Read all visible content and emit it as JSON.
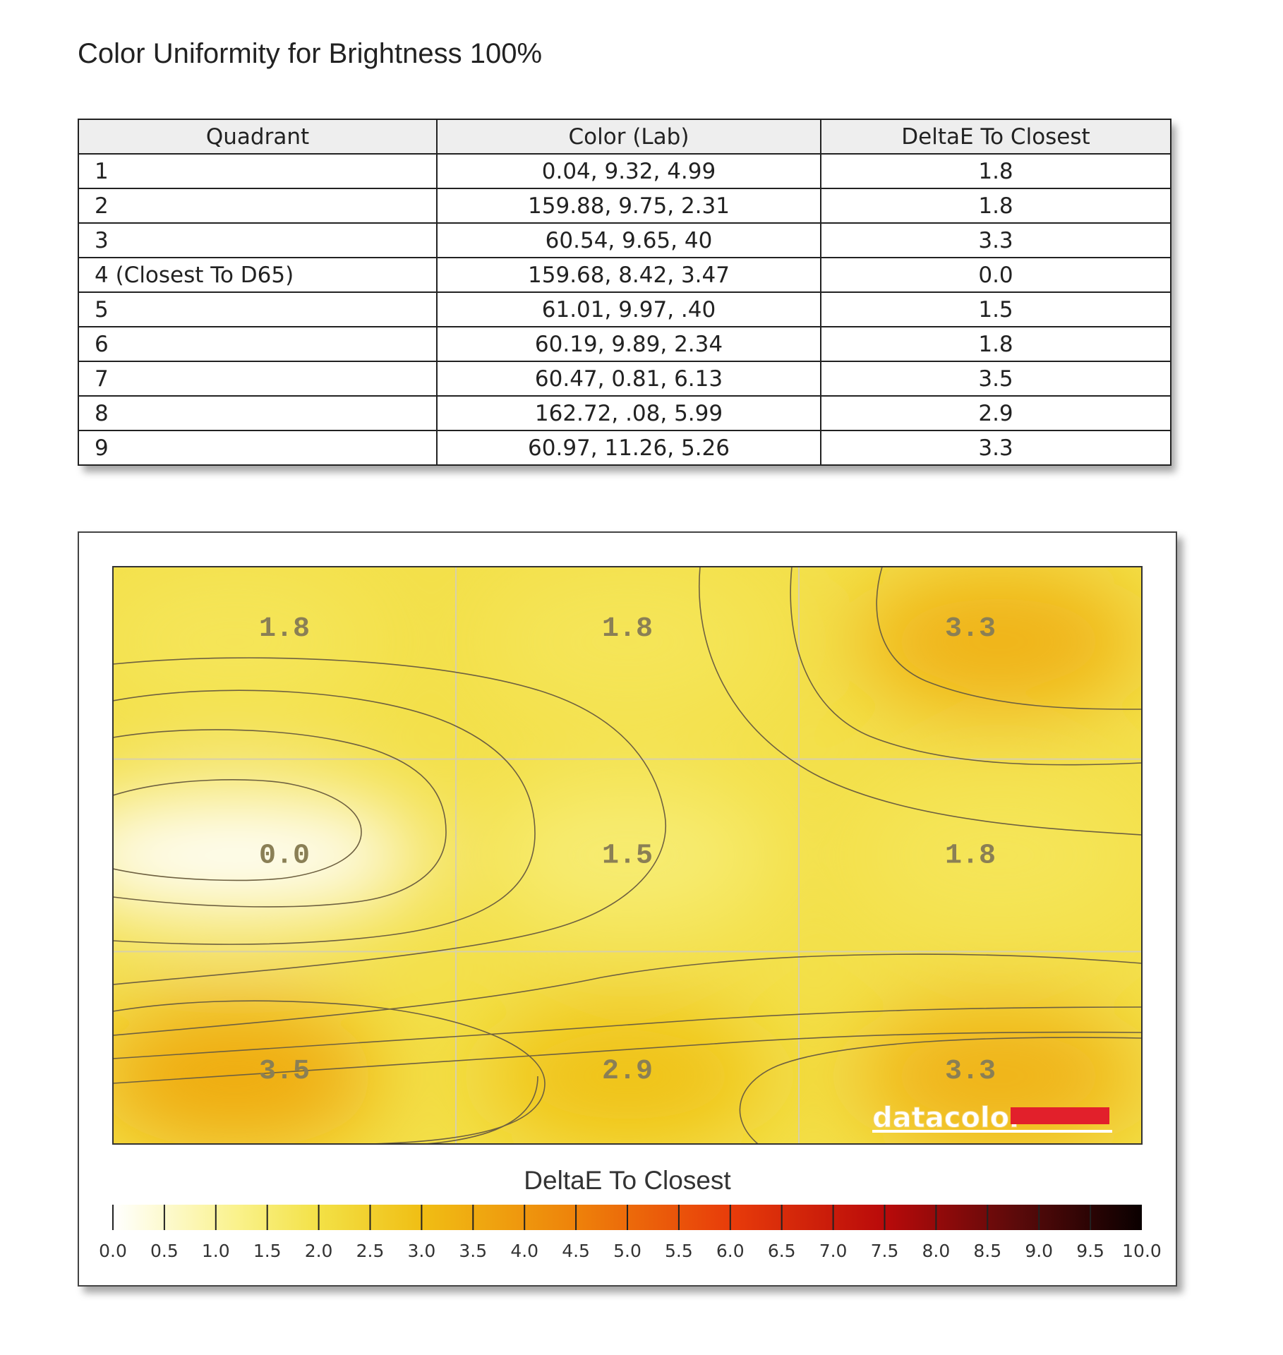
{
  "title": "Color Uniformity for Brightness 100%",
  "table": {
    "headers": [
      "Quadrant",
      "Color (Lab)",
      "DeltaE To Closest"
    ],
    "rows": [
      {
        "quadrant": "1",
        "lab": "0.04,   9.32,   4.99",
        "delta": "1.8"
      },
      {
        "quadrant": "2",
        "lab": "159.88,   9.75,   2.31",
        "delta": "1.8"
      },
      {
        "quadrant": "3",
        "lab": "60.54,   9.65,      40",
        "delta": "3.3"
      },
      {
        "quadrant": "4 (Closest To D65)",
        "lab": "159.68,   8.42,   3.47",
        "delta": "0.0"
      },
      {
        "quadrant": "5",
        "lab": "61.01,   9.97,     .40",
        "delta": "1.5"
      },
      {
        "quadrant": "6",
        "lab": "60.19,   9.89,   2.34",
        "delta": "1.8"
      },
      {
        "quadrant": "7",
        "lab": "60.47,   0.81,   6.13",
        "delta": "3.5"
      },
      {
        "quadrant": "8",
        "lab": "162.72,     .08,   5.99",
        "delta": "2.9"
      },
      {
        "quadrant": "9",
        "lab": "60.97,  11.26,   5.26",
        "delta": "3.3"
      }
    ]
  },
  "chart_data": {
    "type": "heatmap",
    "title": "DeltaE To Closest",
    "grid_rows": 3,
    "grid_cols": 3,
    "cells": [
      {
        "row": 0,
        "col": 0,
        "label": "1.8",
        "value": 1.8
      },
      {
        "row": 0,
        "col": 1,
        "label": "1.8",
        "value": 1.8
      },
      {
        "row": 0,
        "col": 2,
        "label": "3.3",
        "value": 3.3
      },
      {
        "row": 1,
        "col": 0,
        "label": "0.0",
        "value": 0.0
      },
      {
        "row": 1,
        "col": 1,
        "label": "1.5",
        "value": 1.5
      },
      {
        "row": 1,
        "col": 2,
        "label": "1.8",
        "value": 1.8
      },
      {
        "row": 2,
        "col": 0,
        "label": "3.5",
        "value": 3.5
      },
      {
        "row": 2,
        "col": 1,
        "label": "2.9",
        "value": 2.9
      },
      {
        "row": 2,
        "col": 2,
        "label": "3.3",
        "value": 3.3
      }
    ],
    "colorbar": {
      "min": 0.0,
      "max": 10.0,
      "tick_labels": [
        "0.0",
        "0.5",
        "1.0",
        "1.5",
        "2.0",
        "2.5",
        "3.0",
        "3.5",
        "4.0",
        "4.5",
        "5.0",
        "5.5",
        "6.0",
        "6.5",
        "7.0",
        "7.5",
        "8.0",
        "8.5",
        "9.0",
        "9.5",
        "10.0"
      ]
    },
    "brand": "datacolor",
    "colors": {
      "brand_red": "#e2202b",
      "contour_line": "#6e6040",
      "grid_line": "#d8d0a8"
    }
  }
}
